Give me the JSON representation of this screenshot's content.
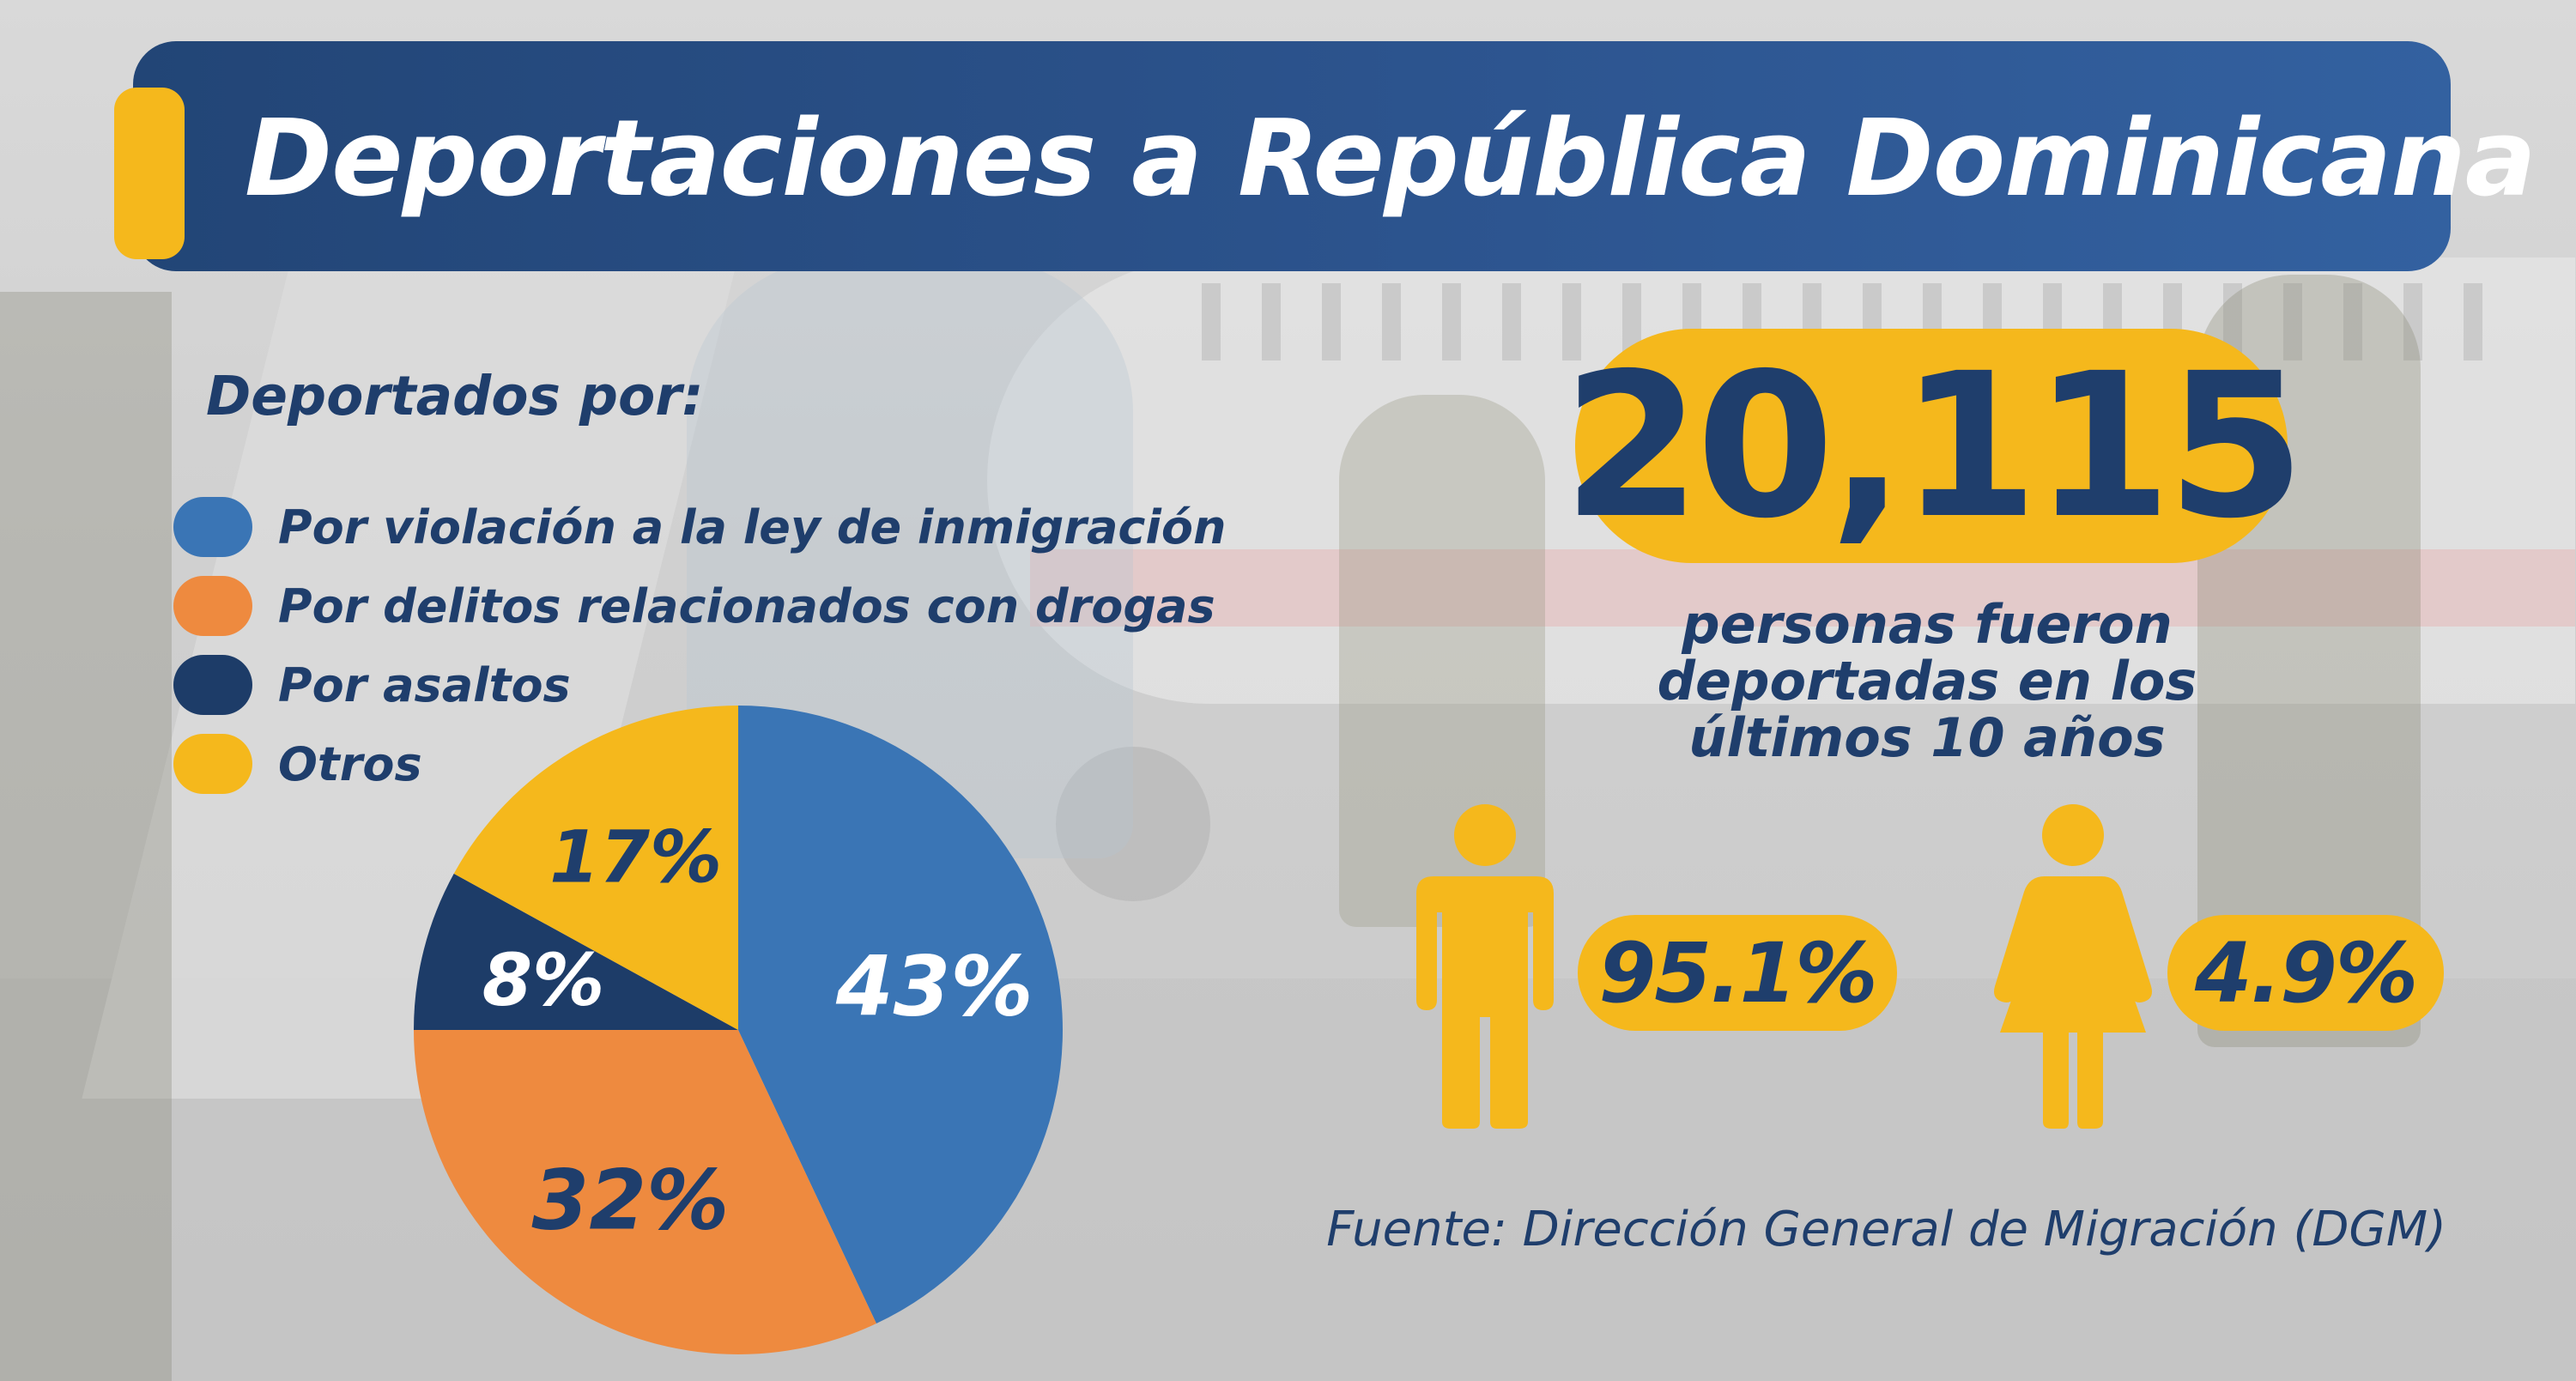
{
  "title": "Deportaciones a República Dominicana",
  "legend": {
    "title": "Deportados por:",
    "items": [
      {
        "label": "Por violación a la ley de inmigración",
        "color": "#3a75b5"
      },
      {
        "label": "Por delitos relacionados con drogas",
        "color": "#ee8a3f"
      },
      {
        "label": "Por asaltos",
        "color": "#1d3c68"
      },
      {
        "label": "Otros",
        "color": "#f5b81c"
      }
    ]
  },
  "chart_data": {
    "type": "pie",
    "title": "Deportados por:",
    "categories": [
      "Por violación a la ley de inmigración",
      "Por delitos relacionados con drogas",
      "Por asaltos",
      "Otros"
    ],
    "values": [
      43,
      32,
      8,
      17
    ],
    "labels": [
      "43%",
      "32%",
      "8%",
      "17%"
    ],
    "colors": [
      "#3a75b5",
      "#ee8a3f",
      "#1d3c68",
      "#f5b81c"
    ],
    "label_colors": [
      "#ffffff",
      "#1f3e6c",
      "#ffffff",
      "#1f3e6c"
    ],
    "start_angle_deg": 0,
    "direction": "clockwise"
  },
  "total": {
    "number": "20,115",
    "description_lines": [
      "personas fueron",
      "deportadas en los",
      "últimos 10 años"
    ]
  },
  "gender": {
    "men": {
      "icon": "man-icon",
      "percent": "95.1%",
      "value": 95.1
    },
    "women": {
      "icon": "woman-icon",
      "percent": "4.9%",
      "value": 4.9
    }
  },
  "source": "Fuente: Dirección General de Migración (DGM)",
  "colors": {
    "navy": "#1f3e6c",
    "banner": "#2d5590",
    "accent": "#f5b81c"
  }
}
